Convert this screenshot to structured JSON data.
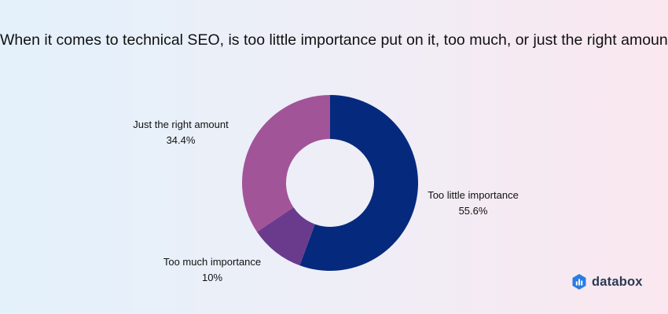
{
  "chart_data": {
    "type": "pie",
    "title": "When it comes to technical SEO, is too little importance put on it, too much, or just the right amount?",
    "donut": true,
    "start": "top, clockwise",
    "slices": [
      {
        "label": "Too little importance",
        "value": 55.6,
        "value_label": "55.6%",
        "color": "#052a7d"
      },
      {
        "label": "Too much importance",
        "value": 10,
        "value_label": "10%",
        "color": "#6a3b8d"
      },
      {
        "label": "Just the right amount",
        "value": 34.4,
        "value_label": "34.4%",
        "color": "#a25498"
      }
    ]
  },
  "brand": {
    "name": "databox",
    "icon": "databox-logo-icon",
    "color": "#2a7de1"
  }
}
